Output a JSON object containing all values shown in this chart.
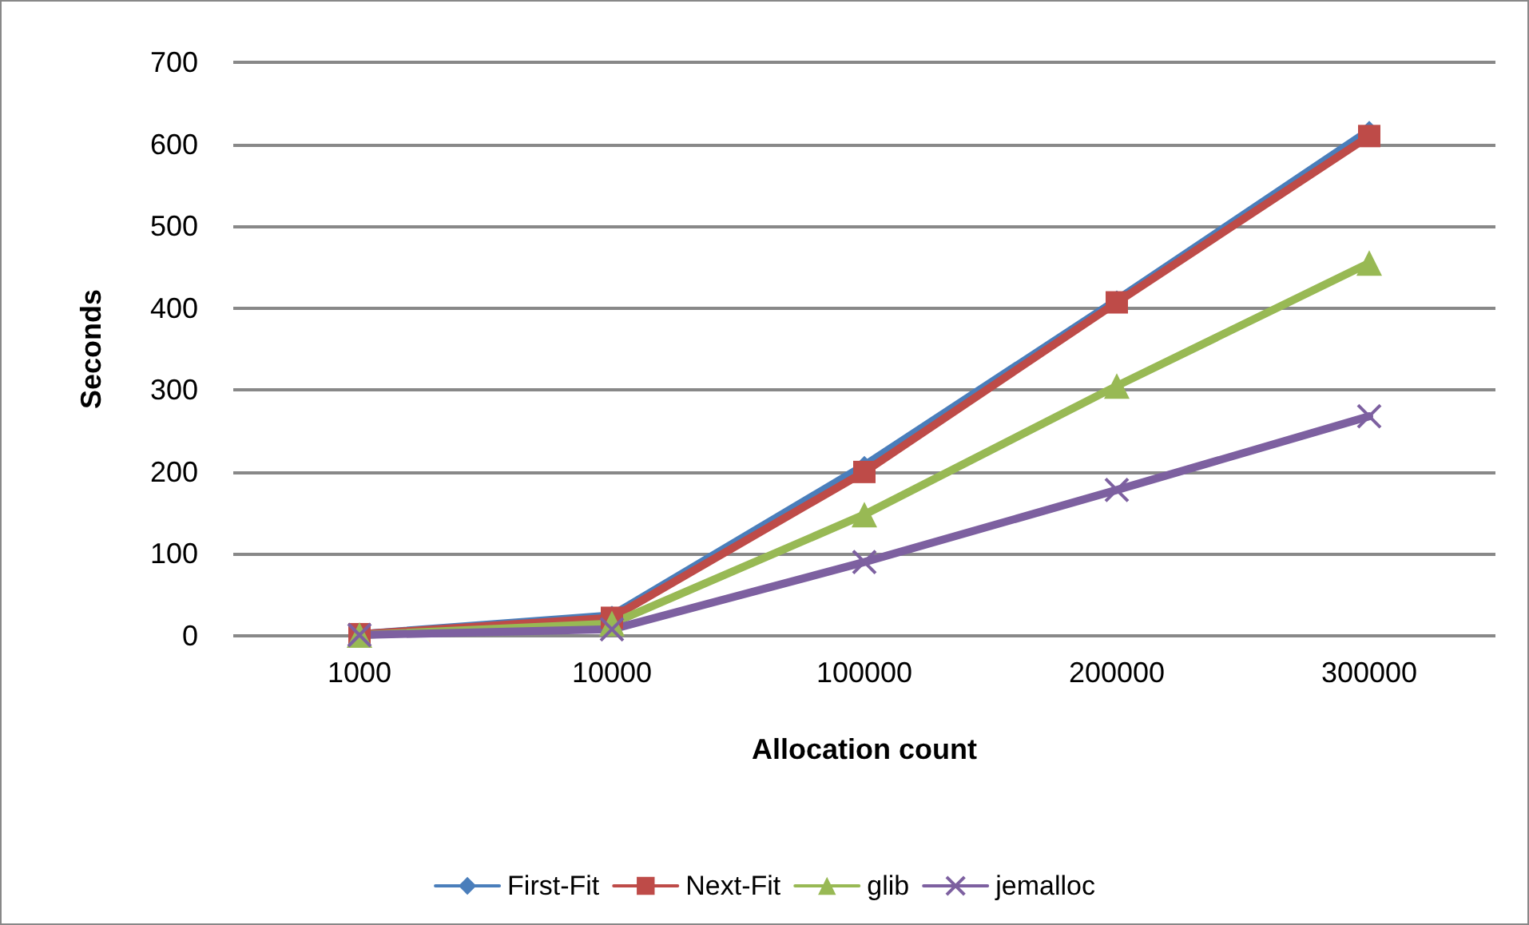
{
  "chart_data": {
    "type": "line",
    "xlabel": "Allocation count",
    "ylabel": "Seconds",
    "categories": [
      "1000",
      "10000",
      "100000",
      "200000",
      "300000"
    ],
    "series": [
      {
        "name": "First-Fit",
        "color": "#4a7ebb",
        "marker": "diamond",
        "values": [
          2,
          25,
          208,
          410,
          617
        ]
      },
      {
        "name": "Next-Fit",
        "color": "#be4b48",
        "marker": "square",
        "values": [
          2,
          22,
          200,
          407,
          610
        ]
      },
      {
        "name": "glib",
        "color": "#98b954",
        "marker": "triangle",
        "values": [
          1,
          15,
          148,
          305,
          455
        ]
      },
      {
        "name": "jemalloc",
        "color": "#7d60a0",
        "marker": "cross",
        "values": [
          1,
          8,
          90,
          178,
          268
        ]
      }
    ],
    "ylim": [
      0,
      700
    ],
    "yticks": [
      0,
      100,
      200,
      300,
      400,
      500,
      600,
      700
    ],
    "grid": "y",
    "legend": "bottom",
    "line_style": "solid"
  }
}
